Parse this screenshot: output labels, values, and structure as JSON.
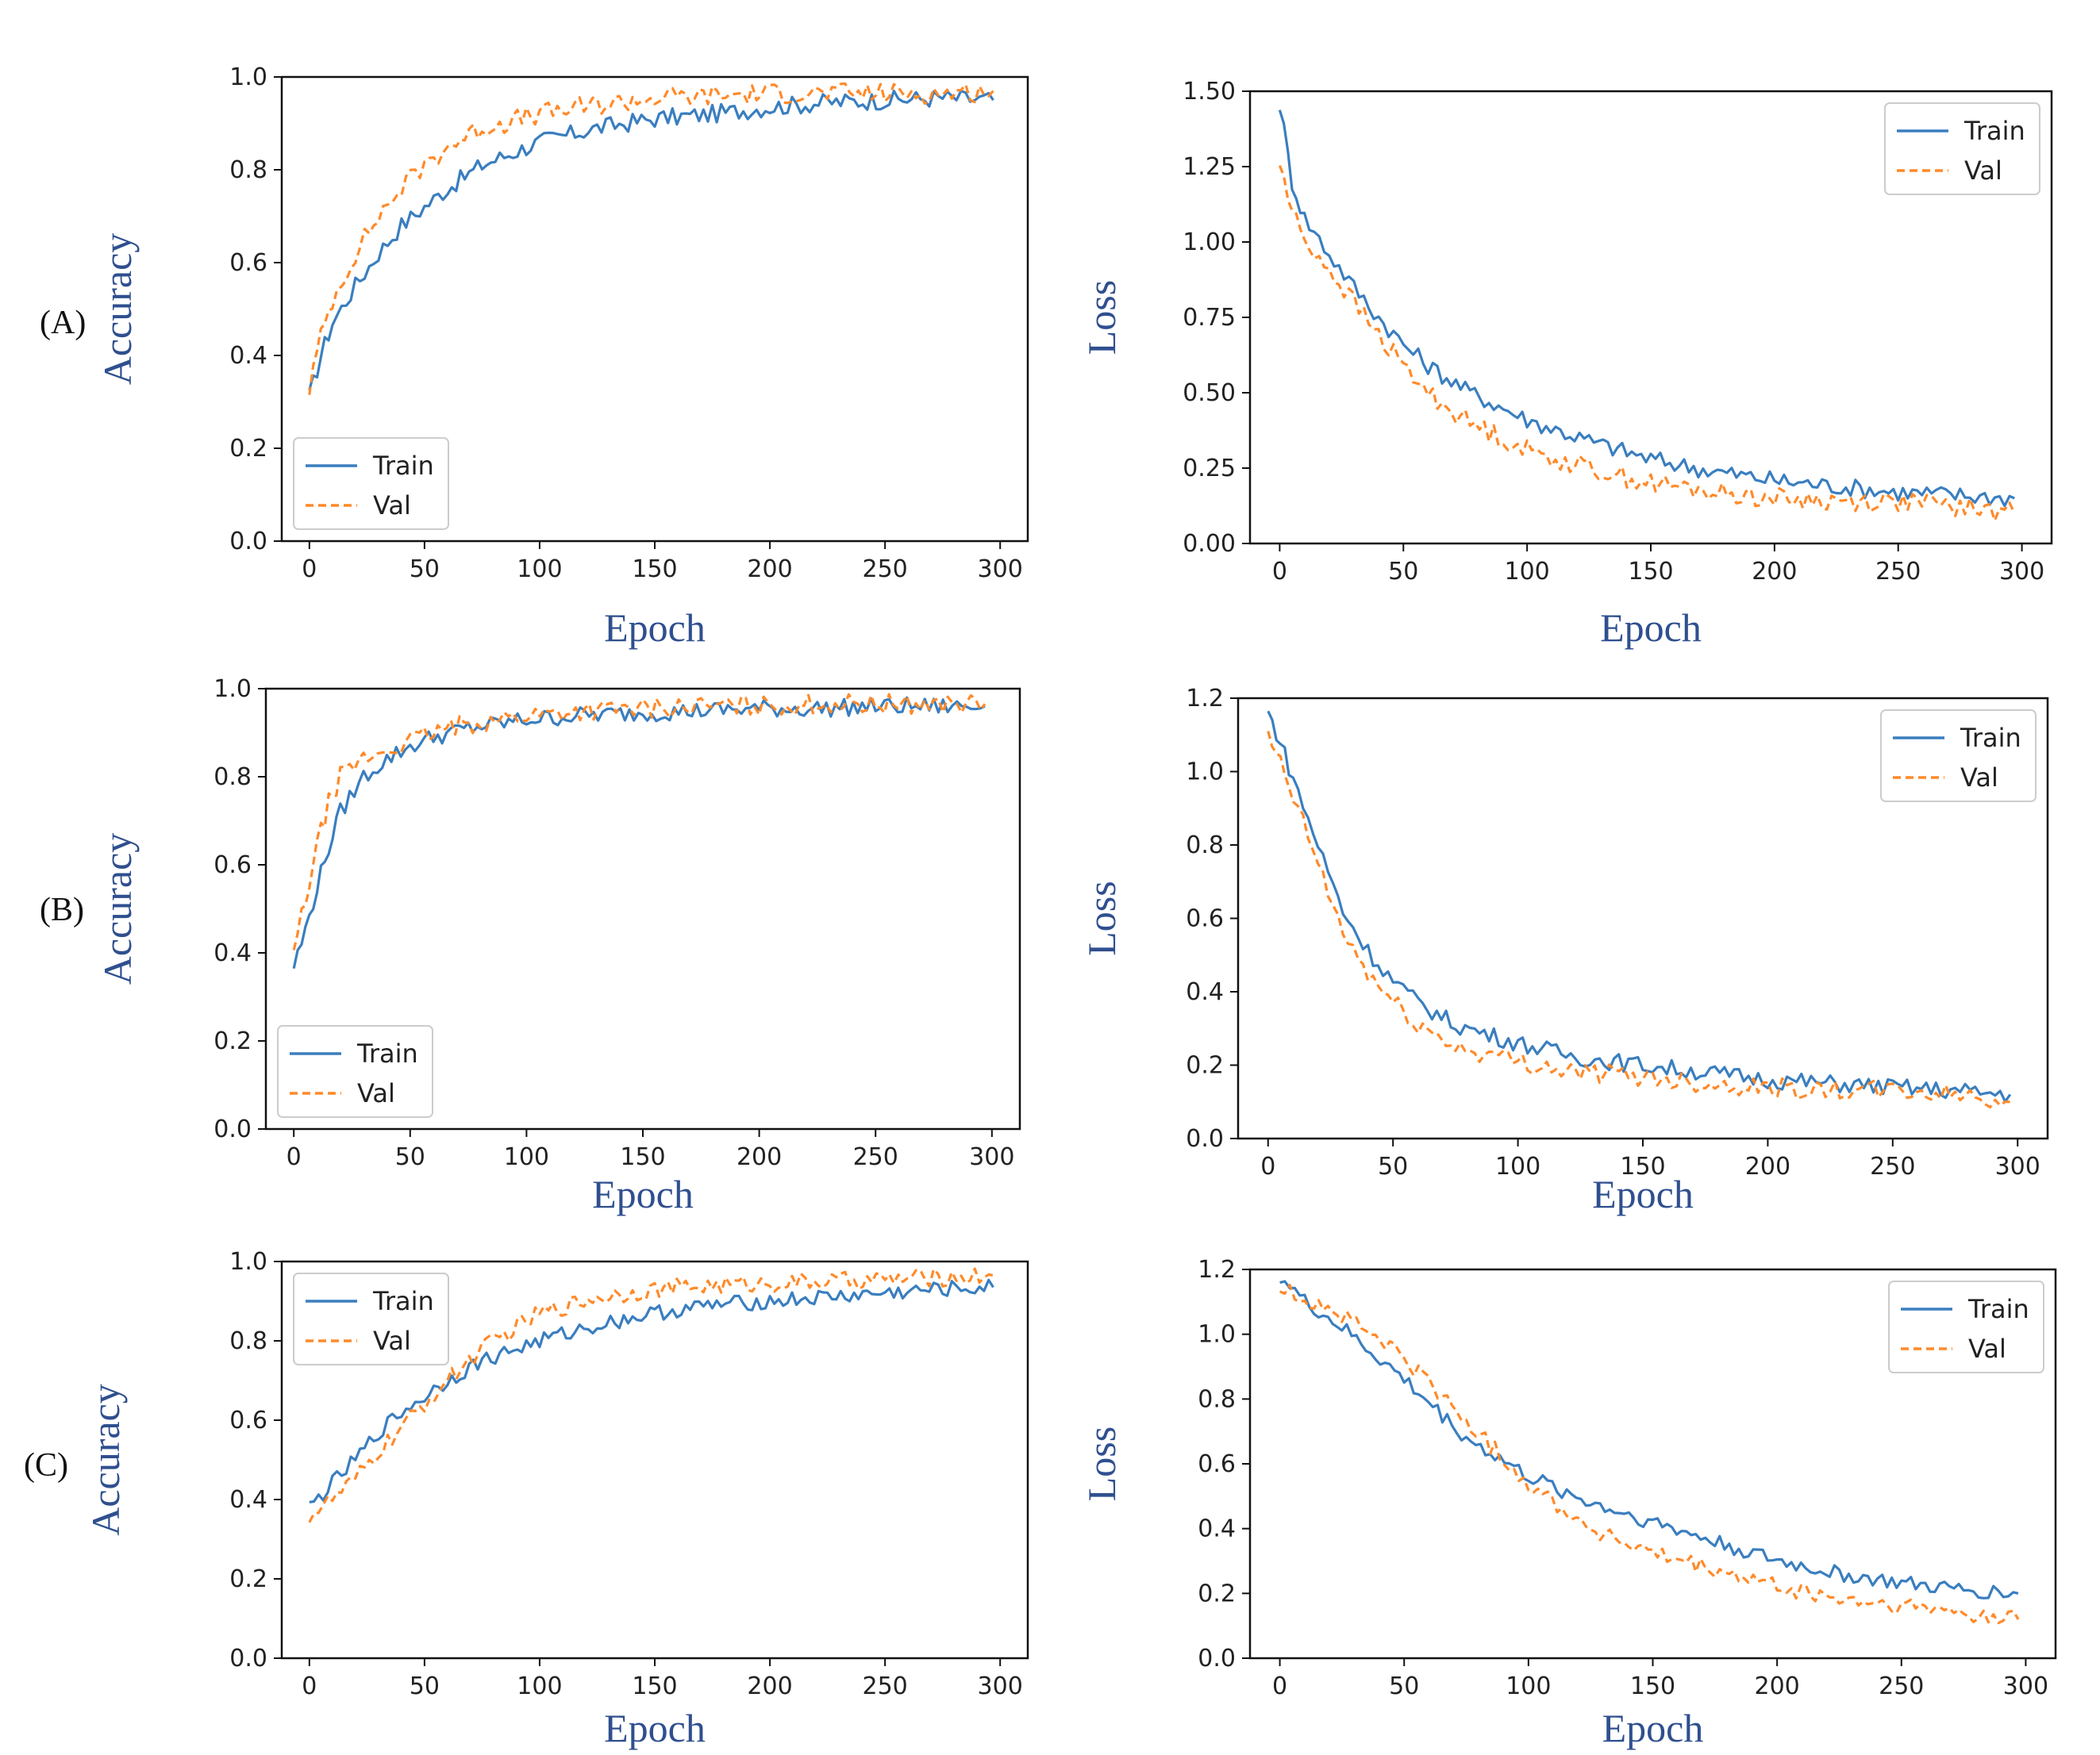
{
  "figure": {
    "colors": {
      "train": "#3a7ebf",
      "val": "#ff8a2a"
    }
  },
  "chart_data": [
    {
      "id": "A-acc",
      "row_label": "(A)",
      "type": "line",
      "xlabel": "Epoch",
      "ylabel": "Accuracy",
      "xlim": [
        -12,
        312
      ],
      "ylim": [
        0,
        1.0
      ],
      "xticks": [
        0,
        50,
        100,
        150,
        200,
        250,
        300
      ],
      "yticks": [
        0.0,
        0.2,
        0.4,
        0.6,
        0.8,
        1.0
      ],
      "tick_decimals": 1,
      "grid": false,
      "legend_position": "lower-left",
      "series": [
        {
          "name": "Train",
          "style": "solid",
          "x": [
            0,
            5,
            10,
            20,
            30,
            40,
            50,
            60,
            75,
            100,
            125,
            150,
            175,
            200,
            225,
            250,
            275,
            297
          ],
          "y": [
            0.31,
            0.4,
            0.47,
            0.55,
            0.62,
            0.68,
            0.72,
            0.76,
            0.81,
            0.86,
            0.89,
            0.91,
            0.92,
            0.935,
            0.945,
            0.95,
            0.955,
            0.95
          ]
        },
        {
          "name": "Val",
          "style": "dashed",
          "x": [
            0,
            5,
            10,
            20,
            30,
            40,
            50,
            60,
            75,
            100,
            125,
            150,
            175,
            200,
            225,
            250,
            275,
            297
          ],
          "y": [
            0.33,
            0.44,
            0.52,
            0.62,
            0.7,
            0.76,
            0.81,
            0.85,
            0.89,
            0.92,
            0.94,
            0.955,
            0.96,
            0.965,
            0.965,
            0.965,
            0.965,
            0.97
          ]
        }
      ]
    },
    {
      "id": "A-loss",
      "row_label": "",
      "type": "line",
      "xlabel": "Epoch",
      "ylabel": "Loss",
      "xlim": [
        -12,
        312
      ],
      "ylim": [
        0,
        1.5
      ],
      "xticks": [
        0,
        50,
        100,
        150,
        200,
        250,
        300
      ],
      "yticks": [
        0.0,
        0.25,
        0.5,
        0.75,
        1.0,
        1.25,
        1.5
      ],
      "tick_decimals": 2,
      "grid": false,
      "legend_position": "upper-right",
      "series": [
        {
          "name": "Train",
          "style": "solid",
          "x": [
            0,
            5,
            10,
            20,
            30,
            40,
            50,
            60,
            75,
            100,
            125,
            150,
            175,
            200,
            225,
            250,
            275,
            297
          ],
          "y": [
            1.46,
            1.2,
            1.08,
            0.96,
            0.85,
            0.75,
            0.66,
            0.59,
            0.51,
            0.41,
            0.34,
            0.28,
            0.24,
            0.21,
            0.19,
            0.17,
            0.16,
            0.15
          ]
        },
        {
          "name": "Val",
          "style": "dashed",
          "x": [
            0,
            5,
            10,
            20,
            30,
            40,
            50,
            60,
            75,
            100,
            125,
            150,
            175,
            200,
            225,
            250,
            275,
            297
          ],
          "y": [
            1.26,
            1.1,
            1.01,
            0.91,
            0.8,
            0.69,
            0.59,
            0.5,
            0.41,
            0.31,
            0.25,
            0.2,
            0.17,
            0.15,
            0.14,
            0.14,
            0.12,
            0.1
          ]
        }
      ]
    },
    {
      "id": "B-acc",
      "row_label": "(B)",
      "type": "line",
      "xlabel": "Epoch",
      "ylabel": "Accuracy",
      "xlim": [
        -12,
        312
      ],
      "ylim": [
        0,
        1.0
      ],
      "xticks": [
        0,
        50,
        100,
        150,
        200,
        250,
        300
      ],
      "yticks": [
        0.0,
        0.2,
        0.4,
        0.6,
        0.8,
        1.0
      ],
      "tick_decimals": 1,
      "grid": false,
      "legend_position": "lower-left",
      "series": [
        {
          "name": "Train",
          "style": "solid",
          "x": [
            0,
            5,
            10,
            15,
            20,
            30,
            40,
            50,
            60,
            75,
            100,
            125,
            150,
            175,
            200,
            225,
            250,
            275,
            297
          ],
          "y": [
            0.37,
            0.45,
            0.55,
            0.64,
            0.72,
            0.8,
            0.84,
            0.87,
            0.89,
            0.91,
            0.93,
            0.94,
            0.945,
            0.95,
            0.955,
            0.955,
            0.96,
            0.96,
            0.96
          ]
        },
        {
          "name": "Val",
          "style": "dashed",
          "x": [
            0,
            5,
            10,
            15,
            20,
            30,
            40,
            50,
            60,
            75,
            100,
            125,
            150,
            175,
            200,
            225,
            250,
            275,
            297
          ],
          "y": [
            0.4,
            0.52,
            0.64,
            0.74,
            0.8,
            0.84,
            0.86,
            0.88,
            0.9,
            0.92,
            0.94,
            0.95,
            0.955,
            0.96,
            0.96,
            0.965,
            0.965,
            0.965,
            0.965
          ]
        }
      ]
    },
    {
      "id": "B-loss",
      "row_label": "",
      "type": "line",
      "xlabel": "Epoch",
      "ylabel": "Loss",
      "xlim": [
        -12,
        312
      ],
      "ylim": [
        0,
        1.2
      ],
      "xticks": [
        0,
        50,
        100,
        150,
        200,
        250,
        300
      ],
      "yticks": [
        0.0,
        0.2,
        0.4,
        0.6,
        0.8,
        1.0,
        1.2
      ],
      "tick_decimals": 1,
      "grid": false,
      "legend_position": "upper-right",
      "series": [
        {
          "name": "Train",
          "style": "solid",
          "x": [
            0,
            5,
            10,
            20,
            30,
            40,
            50,
            60,
            75,
            100,
            125,
            150,
            175,
            200,
            225,
            250,
            275,
            297
          ],
          "y": [
            1.16,
            1.08,
            0.98,
            0.8,
            0.62,
            0.51,
            0.43,
            0.37,
            0.31,
            0.26,
            0.22,
            0.2,
            0.18,
            0.16,
            0.15,
            0.14,
            0.13,
            0.12
          ]
        },
        {
          "name": "Val",
          "style": "dashed",
          "x": [
            0,
            5,
            10,
            20,
            30,
            40,
            50,
            60,
            75,
            100,
            125,
            150,
            175,
            200,
            225,
            250,
            275,
            297
          ],
          "y": [
            1.09,
            1.02,
            0.93,
            0.75,
            0.56,
            0.45,
            0.37,
            0.31,
            0.25,
            0.21,
            0.18,
            0.17,
            0.15,
            0.14,
            0.13,
            0.13,
            0.12,
            0.1
          ]
        }
      ]
    },
    {
      "id": "C-acc",
      "row_label": "(C)",
      "type": "line",
      "xlabel": "Epoch",
      "ylabel": "Accuracy",
      "xlim": [
        -12,
        312
      ],
      "ylim": [
        0,
        1.0
      ],
      "xticks": [
        0,
        50,
        100,
        150,
        200,
        250,
        300
      ],
      "yticks": [
        0.0,
        0.2,
        0.4,
        0.6,
        0.8,
        1.0
      ],
      "tick_decimals": 1,
      "grid": false,
      "legend_position": "upper-left",
      "series": [
        {
          "name": "Train",
          "style": "solid",
          "x": [
            0,
            10,
            20,
            30,
            40,
            50,
            60,
            75,
            100,
            125,
            150,
            175,
            200,
            225,
            250,
            275,
            297
          ],
          "y": [
            0.38,
            0.44,
            0.5,
            0.57,
            0.62,
            0.66,
            0.7,
            0.75,
            0.8,
            0.84,
            0.87,
            0.89,
            0.9,
            0.91,
            0.92,
            0.93,
            0.935
          ]
        },
        {
          "name": "Val",
          "style": "dashed",
          "x": [
            0,
            10,
            20,
            30,
            40,
            50,
            60,
            75,
            100,
            125,
            150,
            175,
            200,
            225,
            250,
            275,
            297
          ],
          "y": [
            0.36,
            0.4,
            0.45,
            0.52,
            0.58,
            0.64,
            0.7,
            0.78,
            0.87,
            0.91,
            0.93,
            0.94,
            0.945,
            0.95,
            0.955,
            0.96,
            0.965
          ]
        }
      ]
    },
    {
      "id": "C-loss",
      "row_label": "",
      "type": "line",
      "xlabel": "Epoch",
      "ylabel": "Loss",
      "xlim": [
        -12,
        312
      ],
      "ylim": [
        0,
        1.2
      ],
      "xticks": [
        0,
        50,
        100,
        150,
        200,
        250,
        300
      ],
      "yticks": [
        0.0,
        0.2,
        0.4,
        0.6,
        0.8,
        1.0,
        1.2
      ],
      "tick_decimals": 1,
      "grid": false,
      "legend_position": "upper-right",
      "series": [
        {
          "name": "Train",
          "style": "solid",
          "x": [
            0,
            10,
            25,
            50,
            75,
            100,
            125,
            150,
            175,
            200,
            225,
            250,
            275,
            297
          ],
          "y": [
            1.18,
            1.1,
            1.02,
            0.86,
            0.68,
            0.56,
            0.48,
            0.42,
            0.36,
            0.3,
            0.26,
            0.23,
            0.21,
            0.2
          ]
        },
        {
          "name": "Val",
          "style": "dashed",
          "x": [
            0,
            10,
            25,
            50,
            75,
            100,
            125,
            150,
            175,
            200,
            225,
            250,
            275,
            297
          ],
          "y": [
            1.14,
            1.11,
            1.06,
            0.93,
            0.73,
            0.54,
            0.4,
            0.32,
            0.27,
            0.22,
            0.18,
            0.16,
            0.14,
            0.12
          ]
        }
      ]
    }
  ]
}
